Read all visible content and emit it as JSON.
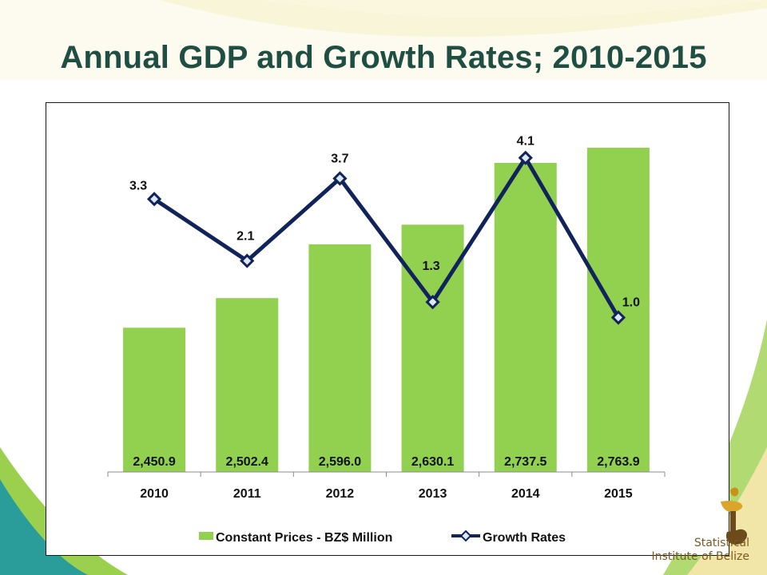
{
  "slide": {
    "title": "Annual GDP and Growth Rates; 2010-2015",
    "logo_line1": "Statistical",
    "logo_line2": "Institute of Belize"
  },
  "colors": {
    "title": "#1f4e43",
    "bar": "#92d050",
    "line": "#10235a",
    "marker_fill": "#dce8f5"
  },
  "chart_data": {
    "type": "bar",
    "categories": [
      "2010",
      "2011",
      "2012",
      "2013",
      "2014",
      "2015"
    ],
    "series": [
      {
        "name": "Constant Prices - BZ$ Million",
        "type": "bar",
        "values": [
          2450.9,
          2502.4,
          2596.0,
          2630.1,
          2737.5,
          2763.9
        ],
        "labels": [
          "2,450.9",
          "2,502.4",
          "2,596.0",
          "2,630.1",
          "2,737.5",
          "2,763.9"
        ]
      },
      {
        "name": "Growth Rates",
        "type": "line",
        "values": [
          3.3,
          2.1,
          3.7,
          1.3,
          4.1,
          1.0
        ],
        "labels": [
          "3.3",
          "2.1",
          "3.7",
          "1.3",
          "4.1",
          "1.0"
        ]
      }
    ],
    "legend_position": "bottom",
    "grid": false,
    "bar_axis_range": [
      2200,
      2800
    ],
    "line_axis_range": [
      -2.0,
      4.7
    ]
  }
}
